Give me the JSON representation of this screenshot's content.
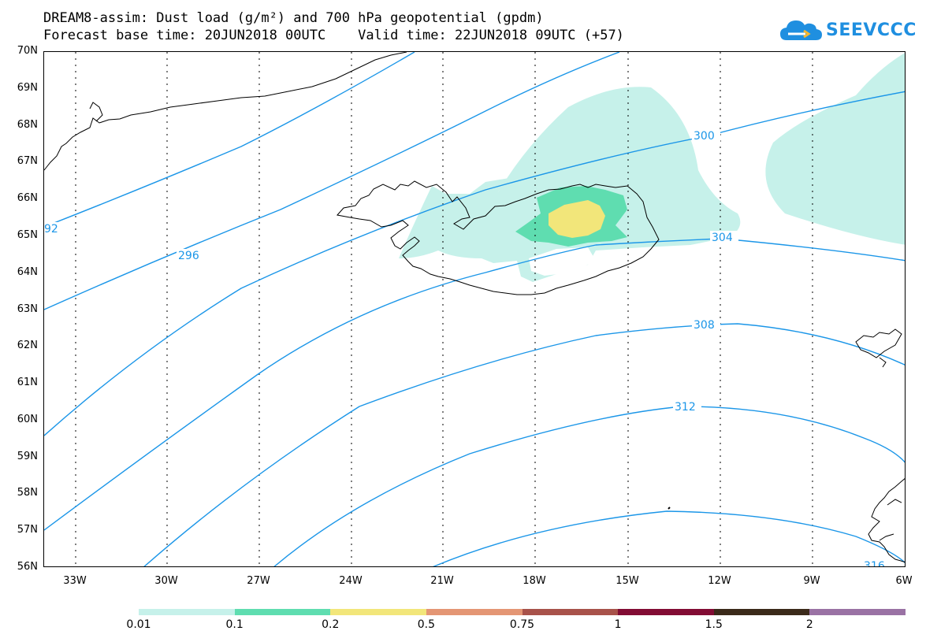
{
  "title": {
    "line1": "DREAM8-assim: Dust load (g/m²) and 700 hPa geopotential (gpdm)",
    "line2": "Forecast base time: 20JUN2018 00UTC    Valid time: 22JUN2018 09UTC (+57)"
  },
  "logo": {
    "text": "SEEVCCC",
    "color": "#1f8fe0"
  },
  "map": {
    "lat_labels": [
      "70N",
      "69N",
      "68N",
      "67N",
      "66N",
      "65N",
      "64N",
      "63N",
      "62N",
      "61N",
      "60N",
      "59N",
      "58N",
      "57N",
      "56N"
    ],
    "lon_labels": [
      "33W",
      "30W",
      "27W",
      "24W",
      "21W",
      "18W",
      "15W",
      "12W",
      "9W",
      "6W"
    ],
    "contour_color": "#1b96e8",
    "coast_color": "#000000",
    "gridline": "dotted",
    "contour_labels": [
      "92",
      "296",
      "300",
      "304",
      "308",
      "312",
      "316"
    ]
  },
  "colorbar": {
    "colors": [
      "#c6f1ea",
      "#5fddb0",
      "#f2e67a",
      "#e49674",
      "#a8524a",
      "#820c34",
      "#3b2a1a",
      "#9a72a4"
    ],
    "tick_labels": [
      "0.01",
      "0.1",
      "0.2",
      "0.5",
      "0.75",
      "1",
      "1.5",
      "2"
    ]
  }
}
